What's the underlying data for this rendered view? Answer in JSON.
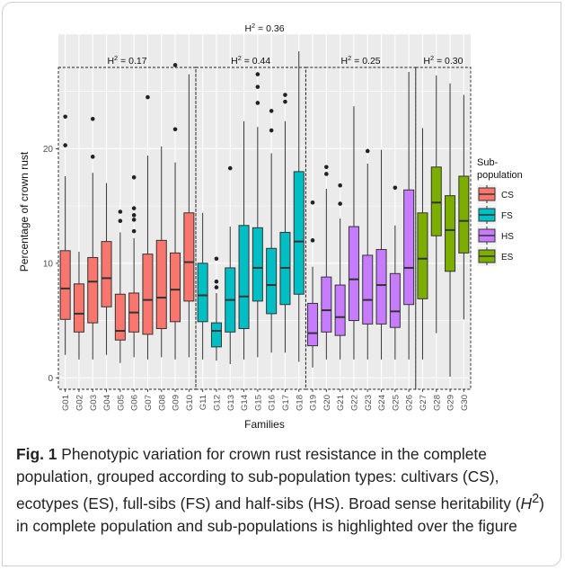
{
  "chart_data": {
    "type": "boxplot",
    "xlabel": "Families",
    "ylabel": "Percentage of crown rust",
    "ylim": [
      -1,
      30
    ],
    "yticks": [
      0,
      10,
      20
    ],
    "grid": true,
    "legend": {
      "title_line1": "Sub-",
      "title_line2": "population",
      "placement": "right",
      "entries": [
        {
          "key": "CS",
          "label": "CS",
          "color": "#F8766D"
        },
        {
          "key": "FS",
          "label": "FS",
          "color": "#00BFC4"
        },
        {
          "key": "HS",
          "label": "HS",
          "color": "#C77CFF"
        },
        {
          "key": "ES",
          "label": "ES",
          "color": "#7CAE00"
        }
      ]
    },
    "heritability_overall": {
      "prefix": "H",
      "sup": "2",
      "value": " = 0.36"
    },
    "groups": [
      {
        "label_prefix": "H",
        "label_sup": "2",
        "label_value": " = 0.17",
        "from": 0,
        "to": 9
      },
      {
        "label_prefix": "H",
        "label_sup": "2",
        "label_value": " = 0.44",
        "from": 10,
        "to": 17
      },
      {
        "label_prefix": "H",
        "label_sup": "2",
        "label_value": " = 0.25",
        "from": 18,
        "to": 25
      },
      {
        "label_prefix": "H",
        "label_sup": "2",
        "label_value": " = 0.30",
        "from": 26,
        "to": 29
      }
    ],
    "boxes": [
      {
        "family": "G01",
        "sub": "CS",
        "min": 2.0,
        "q1": 5.1,
        "median": 7.8,
        "q3": 11.1,
        "max": 17.6,
        "outliers": [
          20.3,
          22.8
        ]
      },
      {
        "family": "G02",
        "sub": "CS",
        "min": 1.6,
        "q1": 4.0,
        "median": 5.6,
        "q3": 8.2,
        "max": 11.0,
        "outliers": []
      },
      {
        "family": "G03",
        "sub": "CS",
        "min": 1.6,
        "q1": 4.8,
        "median": 8.4,
        "q3": 10.5,
        "max": 17.9,
        "outliers": [
          19.3,
          22.6
        ]
      },
      {
        "family": "G04",
        "sub": "CS",
        "min": 2.0,
        "q1": 6.2,
        "median": 8.7,
        "q3": 11.9,
        "max": 17.0,
        "outliers": []
      },
      {
        "family": "G05",
        "sub": "CS",
        "min": 1.3,
        "q1": 3.3,
        "median": 4.1,
        "q3": 7.3,
        "max": 12.7,
        "outliers": [
          13.7,
          14.5
        ]
      },
      {
        "family": "G06",
        "sub": "CS",
        "min": 1.8,
        "q1": 4.0,
        "median": 5.7,
        "q3": 7.4,
        "max": 12.2,
        "outliers": [
          12.8,
          13.8,
          14.2,
          14.8,
          17.5
        ]
      },
      {
        "family": "G07",
        "sub": "CS",
        "min": 1.6,
        "q1": 3.8,
        "median": 6.8,
        "q3": 10.8,
        "max": 19.4,
        "outliers": [
          24.5
        ]
      },
      {
        "family": "G08",
        "sub": "CS",
        "min": 1.8,
        "q1": 4.3,
        "median": 7.0,
        "q3": 12.0,
        "max": 20.2,
        "outliers": []
      },
      {
        "family": "G09",
        "sub": "CS",
        "min": 1.6,
        "q1": 4.9,
        "median": 7.7,
        "q3": 10.9,
        "max": 18.8,
        "outliers": [
          21.7,
          27.3
        ]
      },
      {
        "family": "G10",
        "sub": "CS",
        "min": 1.8,
        "q1": 6.7,
        "median": 10.1,
        "q3": 14.4,
        "max": 26.5,
        "outliers": []
      },
      {
        "family": "G11",
        "sub": "FS",
        "min": 1.6,
        "q1": 4.9,
        "median": 7.2,
        "q3": 10.0,
        "max": 14.4,
        "outliers": []
      },
      {
        "family": "G12",
        "sub": "FS",
        "min": 1.5,
        "q1": 2.7,
        "median": 4.1,
        "q3": 4.8,
        "max": 7.4,
        "outliers": [
          7.9,
          8.4,
          10.4
        ]
      },
      {
        "family": "G13",
        "sub": "FS",
        "min": 1.2,
        "q1": 4.0,
        "median": 6.8,
        "q3": 9.6,
        "max": 13.2,
        "outliers": [
          18.3
        ]
      },
      {
        "family": "G14",
        "sub": "FS",
        "min": 1.6,
        "q1": 4.3,
        "median": 7.1,
        "q3": 13.3,
        "max": 22.4,
        "outliers": []
      },
      {
        "family": "G15",
        "sub": "FS",
        "min": 1.8,
        "q1": 6.7,
        "median": 9.6,
        "q3": 13.1,
        "max": 21.9,
        "outliers": [
          24.0,
          25.4,
          26.5
        ]
      },
      {
        "family": "G16",
        "sub": "FS",
        "min": 2.2,
        "q1": 5.6,
        "median": 8.1,
        "q3": 11.3,
        "max": 19.6,
        "outliers": [
          21.6,
          23.3
        ]
      },
      {
        "family": "G17",
        "sub": "FS",
        "min": 2.2,
        "q1": 6.4,
        "median": 9.6,
        "q3": 12.7,
        "max": 22.4,
        "outliers": [
          24.1,
          24.7
        ]
      },
      {
        "family": "G18",
        "sub": "FS",
        "min": 1.4,
        "q1": 7.3,
        "median": 11.9,
        "q3": 18.0,
        "max": 28.5,
        "outliers": []
      },
      {
        "family": "G19",
        "sub": "HS",
        "min": 0.9,
        "q1": 2.8,
        "median": 3.9,
        "q3": 6.5,
        "max": 9.7,
        "outliers": [
          12.0,
          15.3
        ]
      },
      {
        "family": "G20",
        "sub": "HS",
        "min": 1.6,
        "q1": 4.0,
        "median": 5.9,
        "q3": 8.8,
        "max": 16.5,
        "outliers": [
          17.8,
          18.4
        ]
      },
      {
        "family": "G21",
        "sub": "HS",
        "min": 1.6,
        "q1": 3.7,
        "median": 5.3,
        "q3": 8.1,
        "max": 13.9,
        "outliers": [
          15.2,
          16.8
        ]
      },
      {
        "family": "G22",
        "sub": "HS",
        "min": 1.6,
        "q1": 5.0,
        "median": 8.6,
        "q3": 13.2,
        "max": 23.7,
        "outliers": []
      },
      {
        "family": "G23",
        "sub": "HS",
        "min": 1.6,
        "q1": 4.7,
        "median": 6.8,
        "q3": 10.7,
        "max": 18.7,
        "outliers": [
          19.8
        ]
      },
      {
        "family": "G24",
        "sub": "HS",
        "min": 1.6,
        "q1": 4.7,
        "median": 8.1,
        "q3": 11.2,
        "max": 19.9,
        "outliers": []
      },
      {
        "family": "G25",
        "sub": "HS",
        "min": 1.6,
        "q1": 4.4,
        "median": 5.8,
        "q3": 9.1,
        "max": 13.3,
        "outliers": [
          16.6
        ]
      },
      {
        "family": "G26",
        "sub": "HS",
        "min": 1.6,
        "q1": 6.4,
        "median": 9.6,
        "q3": 16.4,
        "max": 26.7,
        "outliers": []
      },
      {
        "family": "G27",
        "sub": "ES",
        "min": 1.6,
        "q1": 6.9,
        "median": 10.4,
        "q3": 14.4,
        "max": 21.8,
        "outliers": []
      },
      {
        "family": "G28",
        "sub": "ES",
        "min": 3.9,
        "q1": 12.4,
        "median": 15.3,
        "q3": 18.4,
        "max": 26.4,
        "outliers": []
      },
      {
        "family": "G29",
        "sub": "ES",
        "min": 0.1,
        "q1": 9.3,
        "median": 12.9,
        "q3": 15.9,
        "max": 25.7,
        "outliers": []
      },
      {
        "family": "G30",
        "sub": "ES",
        "min": 5.1,
        "q1": 10.9,
        "median": 13.7,
        "q3": 17.6,
        "max": 24.7,
        "outliers": []
      }
    ]
  },
  "caption": {
    "label": "Fig. 1",
    "part1": " Phenotypic variation for crown rust resistance in the complete population, grouped according to sub-population types: cultivars (CS), ecotypes (ES), full-sibs (FS) and half-sibs (HS). Broad sense heritability (",
    "h_letter": "H",
    "h_sup": "2",
    "part2": ") in complete population and sub-populations is highlighted over the figure"
  }
}
